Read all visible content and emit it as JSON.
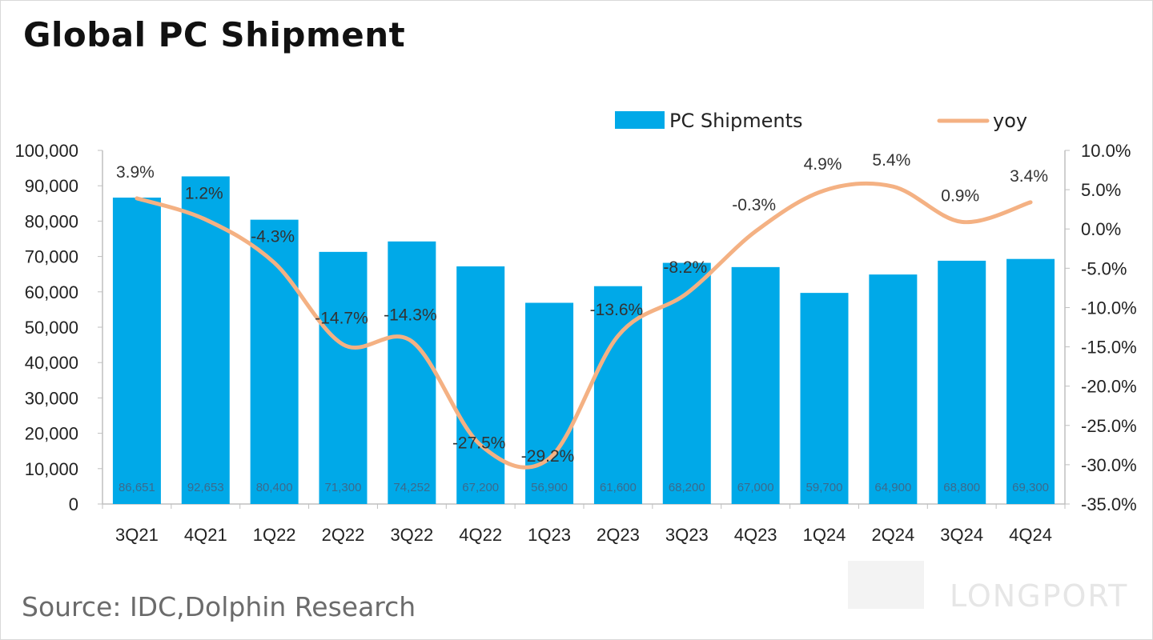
{
  "title": "Global PC Shipment",
  "source": "Source: IDC,Dolphin Research",
  "watermark": "LONGPORT",
  "colors": {
    "bar": "#00a9e8",
    "line": "#f4b183"
  },
  "chart_data": {
    "type": "bar",
    "title": "Global PC Shipment",
    "categories": [
      "3Q21",
      "4Q21",
      "1Q22",
      "2Q22",
      "3Q22",
      "4Q22",
      "1Q23",
      "2Q23",
      "3Q23",
      "4Q23",
      "1Q24",
      "2Q24",
      "3Q24",
      "4Q24"
    ],
    "series": [
      {
        "name": "PC Shipments",
        "type": "bar",
        "axis": "left",
        "values": [
          86651,
          92653,
          80400,
          71300,
          74252,
          67200,
          56900,
          61600,
          68200,
          67000,
          59700,
          64900,
          68800,
          69300
        ],
        "labels": [
          "86,651",
          "92,653",
          "80,400",
          "71,300",
          "74,252",
          "67,200",
          "56,900",
          "61,600",
          "68,200",
          "67,000",
          "59,700",
          "64,900",
          "68,800",
          "69,300"
        ]
      },
      {
        "name": "yoy",
        "type": "line",
        "axis": "right",
        "values": [
          3.9,
          1.2,
          -4.3,
          -14.7,
          -14.3,
          -27.5,
          -29.2,
          -13.6,
          -8.2,
          -0.3,
          4.9,
          5.4,
          0.9,
          3.4
        ],
        "labels": [
          "3.9%",
          "1.2%",
          "-4.3%",
          "-14.7%",
          "-14.3%",
          "-27.5%",
          "-29.2%",
          "-13.6%",
          "-8.2%",
          "-0.3%",
          "4.9%",
          "5.4%",
          "0.9%",
          "3.4%"
        ]
      }
    ],
    "ylim": [
      0,
      100000
    ],
    "yticks": [
      "0",
      "10,000",
      "20,000",
      "30,000",
      "40,000",
      "50,000",
      "60,000",
      "70,000",
      "80,000",
      "90,000",
      "100,000"
    ],
    "y2lim": [
      -35,
      10
    ],
    "y2ticks": [
      "-35.0%",
      "-30.0%",
      "-25.0%",
      "-20.0%",
      "-15.0%",
      "-10.0%",
      "-5.0%",
      "0.0%",
      "5.0%",
      "10.0%"
    ],
    "legend": {
      "position": "top-right",
      "entries": [
        "PC Shipments",
        "yoy"
      ]
    },
    "grid": false
  }
}
